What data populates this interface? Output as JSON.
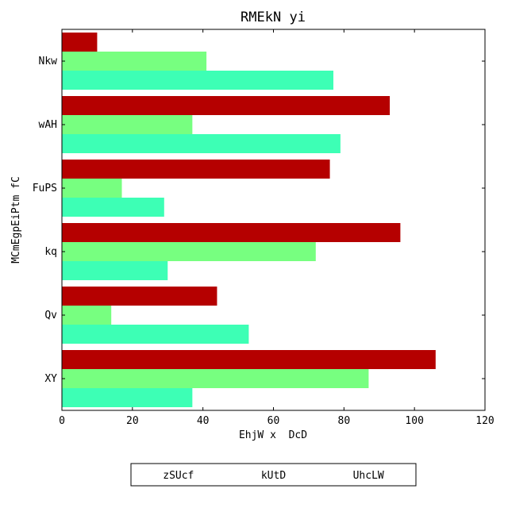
{
  "chart_data": {
    "type": "bar",
    "orientation": "horizontal",
    "title": "RMEkN yi",
    "xlabel": "EhjW x  DcD",
    "ylabel": "MCmEgpEiPtm fC",
    "categories": [
      "Nkw",
      "wAH",
      "FuPS",
      "kq",
      "Qv",
      "XY"
    ],
    "series": [
      {
        "name": "zSUcf",
        "color": "#b50000",
        "values": [
          10,
          93,
          76,
          96,
          44,
          106
        ]
      },
      {
        "name": "kUtD",
        "color": "#77ff80",
        "values": [
          41,
          37,
          17,
          72,
          14,
          87
        ]
      },
      {
        "name": "UhcLW",
        "color": "#3dffb5",
        "values": [
          77,
          79,
          29,
          30,
          53,
          37
        ]
      }
    ],
    "xlim": [
      0,
      120
    ],
    "xticks": [
      0,
      20,
      40,
      60,
      80,
      100,
      120
    ],
    "grid": false,
    "legend_position": "bottom-center"
  }
}
